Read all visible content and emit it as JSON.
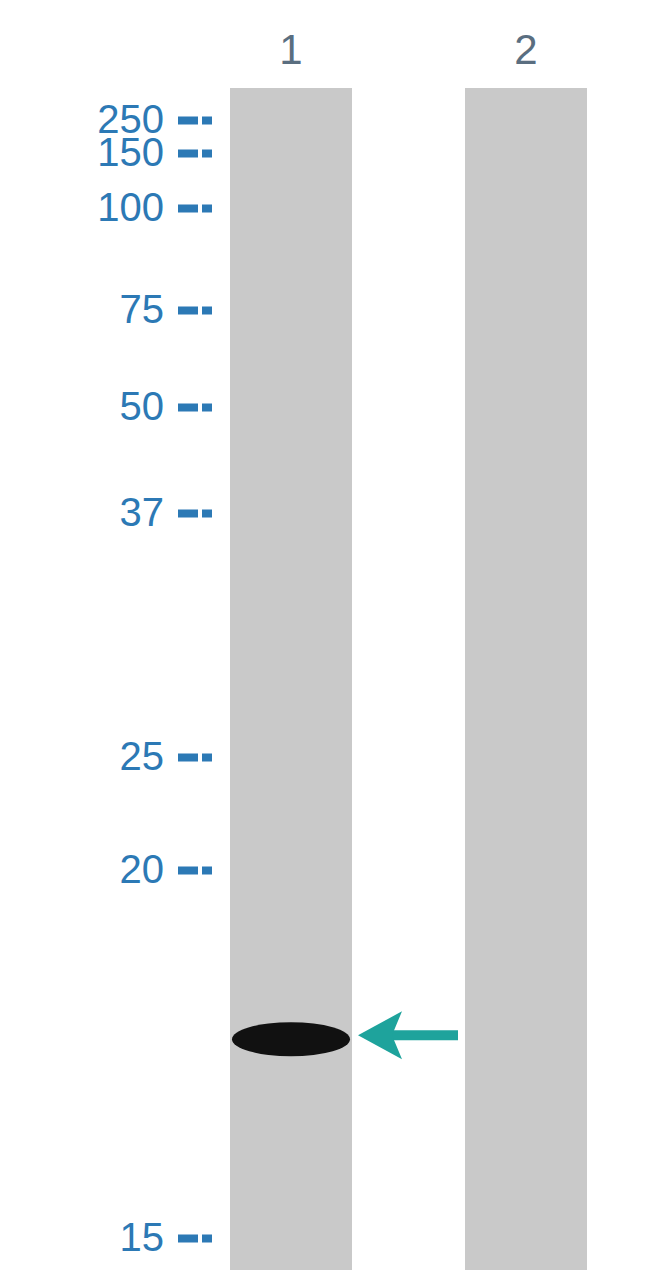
{
  "chart_data": {
    "type": "blot",
    "categories": [
      "1",
      "2"
    ],
    "values": [
      17.7,
      null
    ],
    "color": "#111111",
    "ylim": [
      15,
      250
    ],
    "yticks": [
      250,
      150,
      100,
      75,
      50,
      37,
      25,
      20,
      15
    ]
  }
}
